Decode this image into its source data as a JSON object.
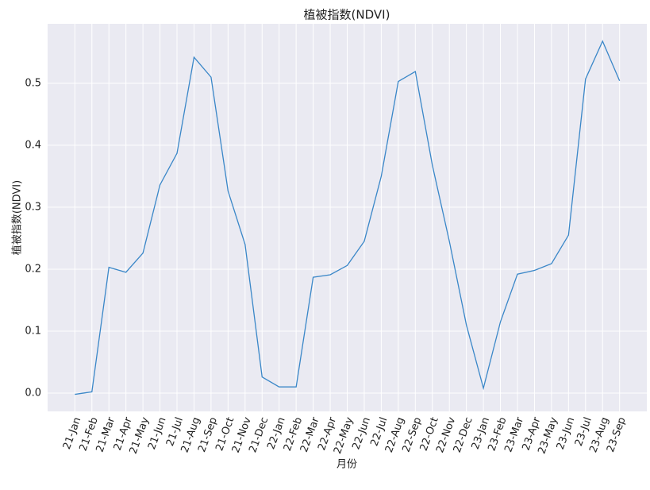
{
  "chart_data": {
    "type": "line",
    "title": "植被指数(NDVI)",
    "x_label": "月份",
    "y_label": "植被指数(NDVI)",
    "categories": [
      "21-Jan",
      "21-Feb",
      "21-Mar",
      "21-Apr",
      "21-May",
      "21-Jun",
      "21-Jul",
      "21-Aug",
      "21-Sep",
      "21-Oct",
      "21-Nov",
      "21-Dec",
      "22-Jan",
      "22-Feb",
      "22-Mar",
      "22-Apr",
      "22-May",
      "22-Jun",
      "22-Jul",
      "22-Aug",
      "22-Sep",
      "22-Oct",
      "22-Nov",
      "22-Dec",
      "23-Jan",
      "23-Feb",
      "23-Mar",
      "23-Apr",
      "23-May",
      "23-Jun",
      "23-Jul",
      "23-Aug",
      "23-Sep"
    ],
    "values": [
      -0.002,
      0.002,
      0.203,
      0.195,
      0.226,
      0.336,
      0.387,
      0.542,
      0.51,
      0.326,
      0.24,
      0.026,
      0.01,
      0.01,
      0.187,
      0.191,
      0.206,
      0.245,
      0.35,
      0.503,
      0.519,
      0.368,
      0.245,
      0.11,
      0.008,
      0.115,
      0.192,
      0.198,
      0.209,
      0.255,
      0.507,
      0.568,
      0.504
    ],
    "color": "#3a87c8",
    "ylim": [
      -0.0295,
      0.596
    ],
    "yticks": [
      {
        "value": 0,
        "label": "0.0"
      },
      0.1,
      0.2,
      0.3,
      0.4,
      0.5
    ],
    "grid": true
  }
}
